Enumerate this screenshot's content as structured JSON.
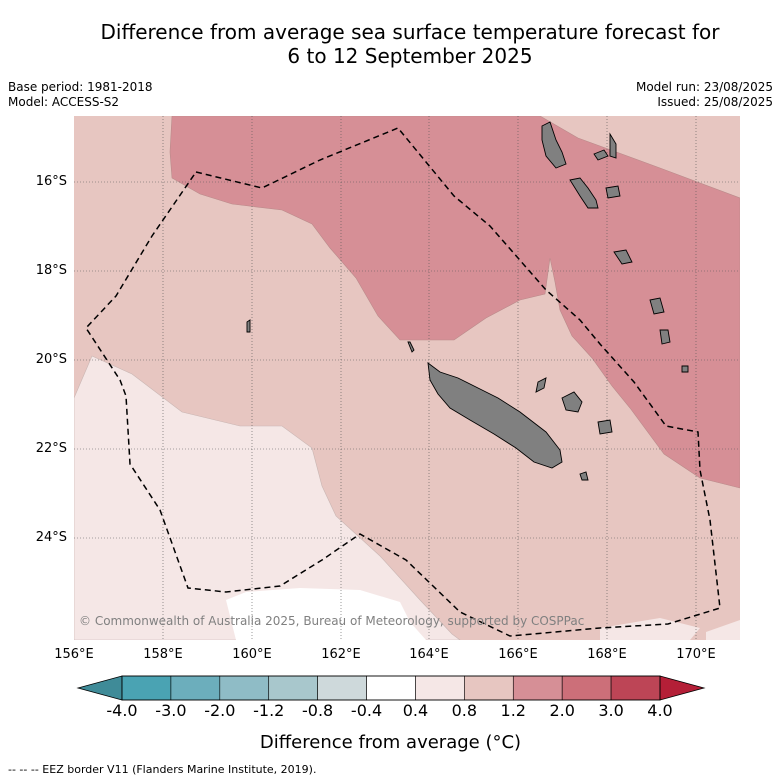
{
  "title_line1": "Difference from average sea surface temperature forecast for",
  "title_line2": "6 to 12 September 2025",
  "meta_left": {
    "line1": "Base period: 1981-2018",
    "line2": "Model: ACCESS-S2"
  },
  "meta_right": {
    "line1": "Model run: 23/08/2025",
    "line2": "Issued: 25/08/2025"
  },
  "copyright": "© Commonwealth of Australia 2025, Bureau of Meteorology, supported by COSPPac",
  "lat_labels": [
    "16°S",
    "18°S",
    "20°S",
    "22°S",
    "24°S"
  ],
  "lon_labels": [
    "156°E",
    "158°E",
    "160°E",
    "162°E",
    "164°E",
    "166°E",
    "168°E",
    "170°E"
  ],
  "colorbar": {
    "ticks": [
      "-4.0",
      "-3.0",
      "-2.0",
      "-1.2",
      "-0.8",
      "-0.4",
      "0.4",
      "0.8",
      "1.2",
      "2.0",
      "3.0",
      "4.0"
    ],
    "colors": [
      "#4aa3b3",
      "#6caebc",
      "#8fbcc6",
      "#a8c7cc",
      "#ced9db",
      "#ffffff",
      "#f5e7e6",
      "#e7c6c1",
      "#d68f96",
      "#cc6f79",
      "#bd4556"
    ],
    "under_color": "#3f8b98",
    "over_color": "#b41f37",
    "title": "Difference from average (°C)"
  },
  "legend_footer": "-- -- -- EEZ border V11 (Flanders Marine Institute, 2019)."
}
